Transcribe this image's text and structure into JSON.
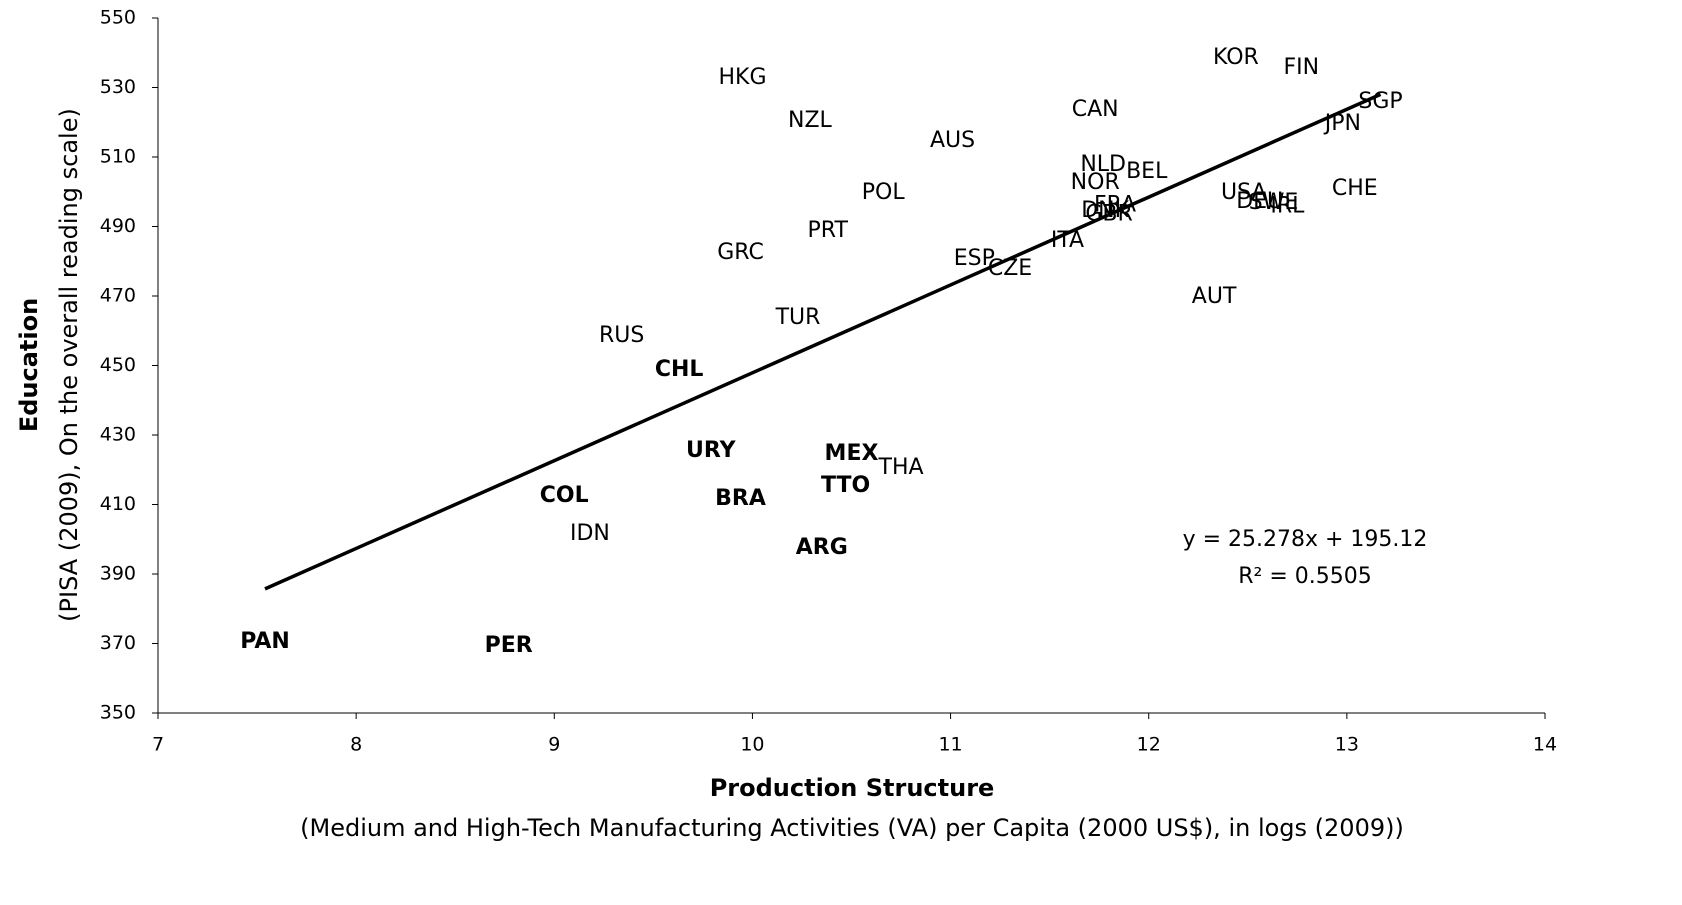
{
  "chart_data": {
    "type": "scatter",
    "y_title": "Education",
    "y_subtitle": "(PISA (2009), On the overall reading scale)",
    "x_title": "Production Structure",
    "x_subtitle": "(Medium and High-Tech Manufacturing Activities (VA) per Capita (2000 US$), in logs (2009))",
    "xlim": [
      7,
      14
    ],
    "xticks": [
      7,
      8,
      9,
      10,
      11,
      12,
      13,
      14
    ],
    "ylim": [
      350,
      550
    ],
    "yticks": [
      350,
      370,
      390,
      410,
      430,
      450,
      470,
      490,
      510,
      530,
      550
    ],
    "series": [
      {
        "color": "#000000",
        "bold": false,
        "labels": [
          "HKG",
          "NZL",
          "AUS",
          "KOR",
          "FIN",
          "SGP",
          "JPN",
          "CAN",
          "NLD",
          "BEL",
          "NOR",
          "USA",
          "SWE",
          "DEU",
          "IRL",
          "CHE",
          "POL",
          "DNK",
          "FRA",
          "GBR",
          "PRT",
          "GRC",
          "ITA",
          "ESP",
          "CZE",
          "AUT",
          "TUR",
          "RUS",
          "THA",
          "IDN"
        ],
        "x": [
          9.95,
          10.29,
          11.01,
          12.44,
          12.77,
          13.17,
          12.98,
          11.73,
          11.77,
          11.99,
          11.73,
          12.48,
          12.63,
          12.56,
          12.7,
          13.04,
          10.66,
          11.78,
          11.83,
          11.8,
          10.38,
          9.94,
          11.59,
          11.12,
          11.3,
          12.33,
          10.23,
          9.34,
          10.75,
          9.18
        ],
        "values": [
          532.7,
          520.4,
          514.6,
          538.5,
          535.6,
          525.8,
          519.5,
          523.5,
          507.7,
          505.7,
          502.5,
          499.6,
          496.8,
          497.0,
          495.7,
          500.8,
          499.6,
          494.5,
          496.0,
          493.5,
          488.7,
          482.4,
          485.8,
          480.6,
          477.8,
          469.7,
          463.7,
          458.5,
          420.5,
          401.5
        ]
      },
      {
        "color": "#0000ff",
        "bold": true,
        "labels": [
          "CHL",
          "URY",
          "MEX",
          "TTO",
          "COL",
          "BRA",
          "ARG",
          "PAN",
          "PER"
        ],
        "x": [
          9.63,
          9.79,
          10.5,
          10.47,
          9.05,
          9.94,
          10.35,
          7.54,
          8.77
        ],
        "values": [
          448.7,
          425.4,
          424.5,
          415.3,
          412.4,
          411.6,
          397.5,
          370.4,
          369.3
        ]
      }
    ],
    "trendline": {
      "slope": 25.278,
      "intercept": 195.12,
      "xlim": [
        7.54,
        13.17
      ],
      "equation": "y = 25.278x + 195.12",
      "r_squared": "R² = 0.5505"
    }
  }
}
